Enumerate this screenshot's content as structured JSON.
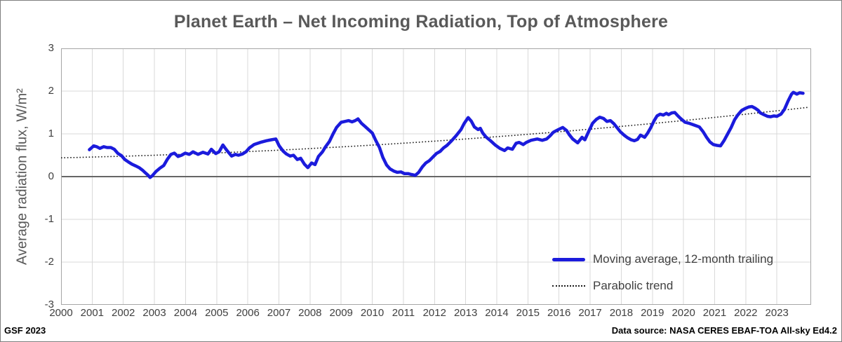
{
  "title": "Planet Earth – Net Incoming Radiation, Top of Atmosphere",
  "y_axis_title": "Average radiation flux, W/m²",
  "credits": {
    "left": "GSF 2023",
    "right": "Data source: NASA CERES EBAF-TOA All-sky Ed4.2"
  },
  "legend": [
    {
      "label": "Moving average, 12-month trailing",
      "style": "solid",
      "color": "#1b1bdc"
    },
    {
      "label": "Parabolic trend",
      "style": "dotted",
      "color": "#1a1a1a"
    }
  ],
  "colors": {
    "line": "#1b1bdc",
    "trend": "#1a1a1a",
    "grid": "#d9d9d9",
    "frame": "#a6a6a6",
    "zero_axis": "#666666",
    "text": "#404040",
    "title_text": "#595959"
  },
  "chart_data": {
    "type": "line",
    "title": "Planet Earth – Net Incoming Radiation, Top of Atmosphere",
    "xlabel": "",
    "ylabel": "Average radiation flux, W/m²",
    "xlim": [
      2000,
      2024.1
    ],
    "ylim": [
      -3,
      3
    ],
    "yticks": [
      3,
      2,
      1,
      0,
      -1,
      -2,
      -3
    ],
    "xticks": [
      2000,
      2001,
      2002,
      2003,
      2004,
      2005,
      2006,
      2007,
      2008,
      2009,
      2010,
      2011,
      2012,
      2013,
      2014,
      2015,
      2016,
      2017,
      2018,
      2019,
      2020,
      2021,
      2022,
      2023
    ],
    "grid": true,
    "legend_position": "inside-lower-right",
    "series": [
      {
        "name": "Moving average, 12-month trailing",
        "color": "#1b1bdc",
        "points": [
          [
            2000.91,
            0.63
          ],
          [
            2001.05,
            0.72
          ],
          [
            2001.14,
            0.7
          ],
          [
            2001.25,
            0.66
          ],
          [
            2001.37,
            0.7
          ],
          [
            2001.48,
            0.68
          ],
          [
            2001.6,
            0.68
          ],
          [
            2001.71,
            0.64
          ],
          [
            2001.83,
            0.54
          ],
          [
            2001.94,
            0.49
          ],
          [
            2002.05,
            0.4
          ],
          [
            2002.17,
            0.34
          ],
          [
            2002.28,
            0.29
          ],
          [
            2002.4,
            0.25
          ],
          [
            2002.51,
            0.21
          ],
          [
            2002.62,
            0.15
          ],
          [
            2002.72,
            0.08
          ],
          [
            2002.8,
            0.03
          ],
          [
            2002.86,
            -0.02
          ],
          [
            2002.93,
            0.02
          ],
          [
            2003.05,
            0.12
          ],
          [
            2003.18,
            0.2
          ],
          [
            2003.3,
            0.26
          ],
          [
            2003.41,
            0.4
          ],
          [
            2003.53,
            0.52
          ],
          [
            2003.64,
            0.55
          ],
          [
            2003.76,
            0.47
          ],
          [
            2003.87,
            0.5
          ],
          [
            2003.99,
            0.55
          ],
          [
            2004.12,
            0.52
          ],
          [
            2004.24,
            0.58
          ],
          [
            2004.4,
            0.52
          ],
          [
            2004.56,
            0.57
          ],
          [
            2004.72,
            0.53
          ],
          [
            2004.83,
            0.64
          ],
          [
            2004.97,
            0.54
          ],
          [
            2005.08,
            0.58
          ],
          [
            2005.2,
            0.74
          ],
          [
            2005.32,
            0.62
          ],
          [
            2005.48,
            0.48
          ],
          [
            2005.6,
            0.52
          ],
          [
            2005.7,
            0.5
          ],
          [
            2005.83,
            0.53
          ],
          [
            2005.94,
            0.58
          ],
          [
            2006.05,
            0.67
          ],
          [
            2006.2,
            0.75
          ],
          [
            2006.4,
            0.8
          ],
          [
            2006.6,
            0.84
          ],
          [
            2006.75,
            0.86
          ],
          [
            2006.9,
            0.88
          ],
          [
            2007.01,
            0.72
          ],
          [
            2007.13,
            0.6
          ],
          [
            2007.24,
            0.53
          ],
          [
            2007.36,
            0.48
          ],
          [
            2007.47,
            0.5
          ],
          [
            2007.59,
            0.4
          ],
          [
            2007.7,
            0.43
          ],
          [
            2007.82,
            0.29
          ],
          [
            2007.93,
            0.21
          ],
          [
            2008.05,
            0.32
          ],
          [
            2008.16,
            0.28
          ],
          [
            2008.27,
            0.47
          ],
          [
            2008.4,
            0.58
          ],
          [
            2008.5,
            0.7
          ],
          [
            2008.62,
            0.82
          ],
          [
            2008.74,
            1.0
          ],
          [
            2008.85,
            1.15
          ],
          [
            2009.0,
            1.27
          ],
          [
            2009.12,
            1.29
          ],
          [
            2009.24,
            1.31
          ],
          [
            2009.35,
            1.28
          ],
          [
            2009.45,
            1.31
          ],
          [
            2009.54,
            1.35
          ],
          [
            2009.65,
            1.25
          ],
          [
            2009.77,
            1.17
          ],
          [
            2009.88,
            1.1
          ],
          [
            2010.0,
            1.02
          ],
          [
            2010.11,
            0.85
          ],
          [
            2010.23,
            0.68
          ],
          [
            2010.34,
            0.45
          ],
          [
            2010.46,
            0.27
          ],
          [
            2010.57,
            0.18
          ],
          [
            2010.69,
            0.13
          ],
          [
            2010.8,
            0.1
          ],
          [
            2010.92,
            0.11
          ],
          [
            2011.03,
            0.07
          ],
          [
            2011.15,
            0.07
          ],
          [
            2011.26,
            0.05
          ],
          [
            2011.38,
            0.03
          ],
          [
            2011.49,
            0.1
          ],
          [
            2011.61,
            0.23
          ],
          [
            2011.72,
            0.32
          ],
          [
            2011.83,
            0.37
          ],
          [
            2011.95,
            0.46
          ],
          [
            2012.06,
            0.54
          ],
          [
            2012.18,
            0.59
          ],
          [
            2012.29,
            0.67
          ],
          [
            2012.4,
            0.73
          ],
          [
            2012.55,
            0.84
          ],
          [
            2012.7,
            0.96
          ],
          [
            2012.85,
            1.1
          ],
          [
            2012.95,
            1.24
          ],
          [
            2013.08,
            1.38
          ],
          [
            2013.18,
            1.3
          ],
          [
            2013.28,
            1.16
          ],
          [
            2013.4,
            1.1
          ],
          [
            2013.47,
            1.13
          ],
          [
            2013.55,
            1.02
          ],
          [
            2013.65,
            0.93
          ],
          [
            2013.8,
            0.84
          ],
          [
            2013.95,
            0.74
          ],
          [
            2014.1,
            0.66
          ],
          [
            2014.25,
            0.61
          ],
          [
            2014.35,
            0.67
          ],
          [
            2014.5,
            0.64
          ],
          [
            2014.62,
            0.78
          ],
          [
            2014.72,
            0.8
          ],
          [
            2014.85,
            0.75
          ],
          [
            2014.95,
            0.8
          ],
          [
            2015.1,
            0.85
          ],
          [
            2015.3,
            0.88
          ],
          [
            2015.46,
            0.85
          ],
          [
            2015.6,
            0.88
          ],
          [
            2015.71,
            0.95
          ],
          [
            2015.82,
            1.04
          ],
          [
            2015.98,
            1.1
          ],
          [
            2016.12,
            1.15
          ],
          [
            2016.24,
            1.08
          ],
          [
            2016.33,
            0.98
          ],
          [
            2016.44,
            0.88
          ],
          [
            2016.6,
            0.79
          ],
          [
            2016.74,
            0.92
          ],
          [
            2016.83,
            0.86
          ],
          [
            2016.97,
            1.08
          ],
          [
            2017.08,
            1.25
          ],
          [
            2017.2,
            1.34
          ],
          [
            2017.31,
            1.39
          ],
          [
            2017.43,
            1.36
          ],
          [
            2017.54,
            1.29
          ],
          [
            2017.65,
            1.31
          ],
          [
            2017.76,
            1.24
          ],
          [
            2017.86,
            1.15
          ],
          [
            2017.97,
            1.05
          ],
          [
            2018.09,
            0.97
          ],
          [
            2018.2,
            0.91
          ],
          [
            2018.32,
            0.86
          ],
          [
            2018.42,
            0.84
          ],
          [
            2018.52,
            0.87
          ],
          [
            2018.62,
            0.97
          ],
          [
            2018.75,
            0.92
          ],
          [
            2018.85,
            1.02
          ],
          [
            2018.95,
            1.15
          ],
          [
            2019.05,
            1.3
          ],
          [
            2019.15,
            1.42
          ],
          [
            2019.25,
            1.46
          ],
          [
            2019.35,
            1.44
          ],
          [
            2019.45,
            1.48
          ],
          [
            2019.52,
            1.45
          ],
          [
            2019.62,
            1.49
          ],
          [
            2019.72,
            1.5
          ],
          [
            2019.82,
            1.42
          ],
          [
            2019.92,
            1.35
          ],
          [
            2020.05,
            1.27
          ],
          [
            2020.17,
            1.25
          ],
          [
            2020.29,
            1.22
          ],
          [
            2020.4,
            1.19
          ],
          [
            2020.51,
            1.16
          ],
          [
            2020.63,
            1.05
          ],
          [
            2020.74,
            0.92
          ],
          [
            2020.85,
            0.81
          ],
          [
            2020.96,
            0.75
          ],
          [
            2021.08,
            0.73
          ],
          [
            2021.19,
            0.72
          ],
          [
            2021.3,
            0.84
          ],
          [
            2021.42,
            1.0
          ],
          [
            2021.53,
            1.15
          ],
          [
            2021.64,
            1.33
          ],
          [
            2021.75,
            1.45
          ],
          [
            2021.87,
            1.55
          ],
          [
            2022.0,
            1.6
          ],
          [
            2022.1,
            1.63
          ],
          [
            2022.2,
            1.64
          ],
          [
            2022.3,
            1.6
          ],
          [
            2022.4,
            1.55
          ],
          [
            2022.47,
            1.49
          ],
          [
            2022.58,
            1.45
          ],
          [
            2022.7,
            1.41
          ],
          [
            2022.8,
            1.4
          ],
          [
            2022.9,
            1.42
          ],
          [
            2023.0,
            1.41
          ],
          [
            2023.13,
            1.46
          ],
          [
            2023.24,
            1.57
          ],
          [
            2023.36,
            1.77
          ],
          [
            2023.47,
            1.93
          ],
          [
            2023.53,
            1.97
          ],
          [
            2023.64,
            1.93
          ],
          [
            2023.73,
            1.96
          ],
          [
            2023.84,
            1.95
          ]
        ]
      },
      {
        "name": "Parabolic trend",
        "color": "#1a1a1a",
        "dotted": true,
        "trend_coefficients": {
          "a": 0.00139,
          "b": 0.0158,
          "c": 0.44,
          "t0": 2000
        },
        "formula": "value = a*(year-t0)^2 + b*(year-t0) + c"
      }
    ]
  }
}
